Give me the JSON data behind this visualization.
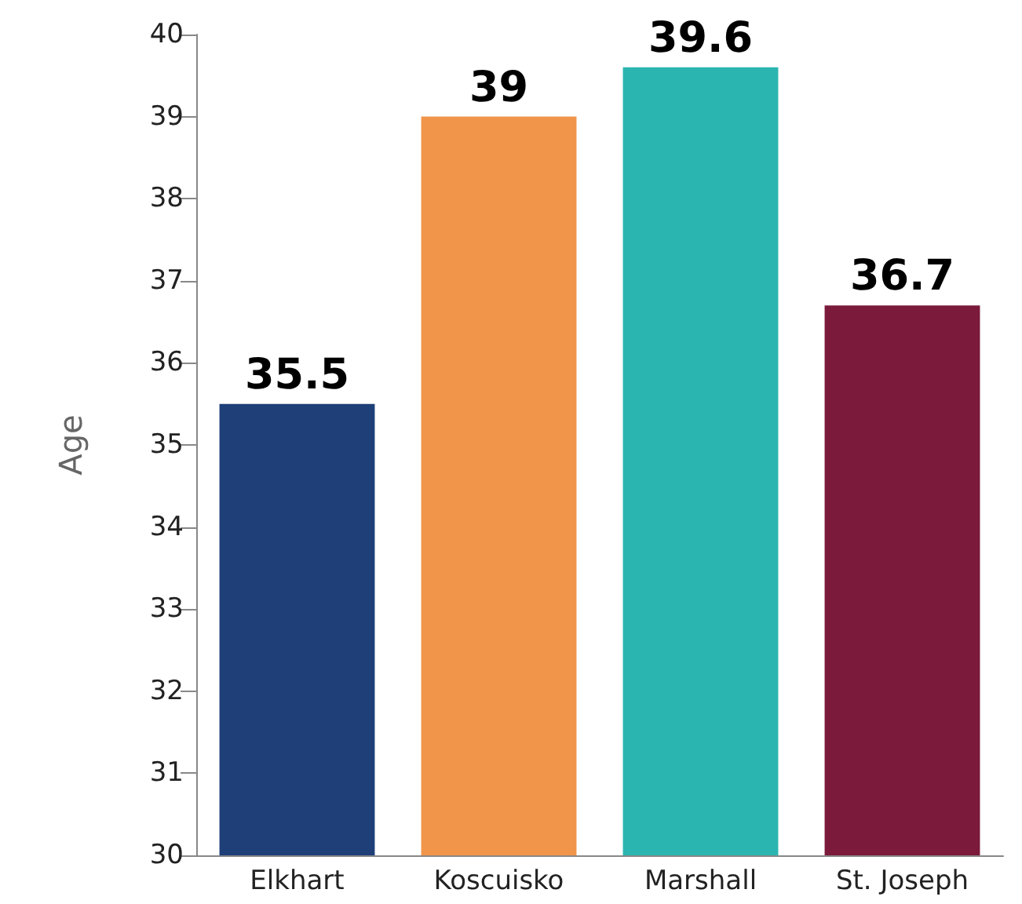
{
  "chart_data": {
    "type": "bar",
    "ylabel": "Age",
    "categories": [
      "Elkhart",
      "Koscuisko",
      "Marshall",
      "St. Joseph"
    ],
    "values": [
      35.5,
      39,
      39.6,
      36.7
    ],
    "colors": [
      "#1e3f78",
      "#f0954a",
      "#2bb5b1",
      "#7b1a3a"
    ],
    "ylim": [
      30,
      40
    ],
    "yticks": [
      30,
      31,
      32,
      33,
      34,
      35,
      36,
      37,
      38,
      39,
      40
    ],
    "data_labels": true
  }
}
